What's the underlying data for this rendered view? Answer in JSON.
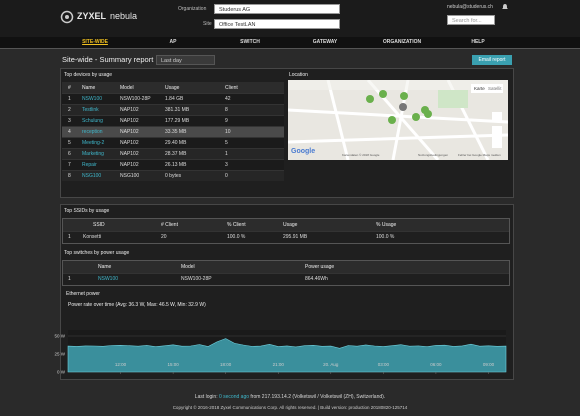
{
  "header": {
    "logo_brand": "ZYXEL",
    "logo_product": "nebula",
    "org_label": "Organization",
    "org": "Studerus AG",
    "site_label": "Site",
    "site": "Office TestLAN",
    "user": "nebula@studerus.ch",
    "search": "Search for..."
  },
  "nav": [
    "SITE-WIDE",
    "AP",
    "SWITCH",
    "GATEWAY",
    "ORGANIZATION",
    "HELP"
  ],
  "report": {
    "title": "Site-wide - Summary report",
    "period": "Last day",
    "button": "Email report"
  },
  "devices": {
    "title": "Top devices by usage",
    "columns": [
      "#",
      "Name",
      "Model",
      "Usage",
      "Client"
    ],
    "rows": [
      [
        1,
        "NSW100",
        "NSW100-28P",
        "1.84 GB",
        42
      ],
      [
        2,
        "Testlink",
        "NAP102",
        "381.31 MB",
        8
      ],
      [
        3,
        "Schulung",
        "NAP102",
        "177.29 MB",
        9
      ],
      [
        4,
        "reception",
        "NAP102",
        "33.35 MB",
        10
      ],
      [
        5,
        "Meeting-2",
        "NAP102",
        "29.40 MB",
        5
      ],
      [
        6,
        "Marketing",
        "NAP102",
        "28.37 MB",
        1
      ],
      [
        7,
        "Repair",
        "NAP102",
        "26.13 MB",
        3
      ],
      [
        8,
        "NSG100",
        "NSG100",
        "0 bytes",
        0
      ]
    ]
  },
  "map": {
    "title": "Location",
    "map_button": "Karte",
    "satellite_button": "Satellit",
    "brand": "Google",
    "credits": "Kartendaten © 2018 Google",
    "terms": "Nutzungsbedingungen",
    "report": "Fehler bei Google Maps melden"
  },
  "ssids": {
    "title": "Top SSIDs by usage",
    "columns": [
      "SSID",
      "# Client",
      "% Client",
      "Usage",
      "% Usage"
    ],
    "rows": [
      [
        1,
        "Konsetti",
        20,
        "100.0 %",
        "295.91 MB",
        "100.0 %"
      ]
    ]
  },
  "switches": {
    "title": "Top switches by power usage",
    "columns": [
      "Name",
      "Model",
      "Power usage"
    ],
    "rows": [
      [
        1,
        "NSW100",
        "NSW100-28P",
        "864.46Wh"
      ]
    ]
  },
  "power": {
    "label": "Ethernet power"
  },
  "chart_data": {
    "type": "area",
    "title": "Power rate over time (Avg: 36.3 W, Max: 46.5 W, Min: 32.9 W)",
    "color": "#3a8f9c",
    "grid": true,
    "x": [
      9,
      9.5,
      10,
      10.5,
      11,
      11.5,
      12,
      12.5,
      13,
      13.5,
      14,
      14.5,
      15,
      15.5,
      16,
      16.5,
      17,
      17.5,
      18,
      18.5,
      19,
      19.5,
      20,
      20.5,
      21,
      21.5,
      22,
      22.5,
      23,
      23.5,
      24,
      24.5,
      25,
      25.5,
      26,
      26.5,
      27,
      27.5,
      28,
      28.5,
      29,
      29.5,
      30,
      30.5,
      31,
      31.5,
      32,
      32.5,
      33,
      33.5,
      34
    ],
    "values": [
      36.0,
      35.5,
      36.2,
      36.1,
      35.7,
      36.8,
      37.0,
      36.5,
      35.8,
      36.9,
      35.2,
      36.4,
      37.8,
      35.9,
      36.1,
      38.2,
      35.4,
      41.8,
      46.5,
      39.9,
      37.5,
      35.6,
      36.0,
      38.4,
      35.3,
      36.2,
      34.8,
      36.5,
      37.1,
      35.7,
      36.0,
      32.9,
      36.8,
      35.9,
      37.6,
      36.1,
      35.4,
      36.6,
      38.0,
      35.8,
      36.3,
      35.1,
      36.9,
      37.3,
      35.5,
      36.2,
      38.6,
      35.9,
      36.4,
      35.7,
      36.0
    ],
    "xlim": [
      9,
      34
    ],
    "ylim": [
      0,
      50
    ],
    "xticks": [
      {
        "value": 12,
        "label": "12:00"
      },
      {
        "value": 15,
        "label": "15:00"
      },
      {
        "value": 18,
        "label": "18:00"
      },
      {
        "value": 21,
        "label": "21:00"
      },
      {
        "value": 24,
        "label": "20. Aug"
      },
      {
        "value": 27,
        "label": "03:00"
      },
      {
        "value": 30,
        "label": "06:00"
      },
      {
        "value": 33,
        "label": "09:00"
      }
    ],
    "yticks": [
      {
        "value": 0,
        "label": "0 W"
      },
      {
        "value": 25,
        "label": "25 W"
      },
      {
        "value": 50,
        "label": "50 W"
      }
    ]
  },
  "footer": {
    "login_prefix": "Last login:",
    "login_ago": "0 second ago",
    "login_suffix": "from 217.193.14.2 (Volketswil / Volketswil (ZH), Switzerland).",
    "copyright": "Copyright © 2016-2018 Zyxel Communications Corp. All rights reserved. | Build version: production 20180820-125714"
  }
}
